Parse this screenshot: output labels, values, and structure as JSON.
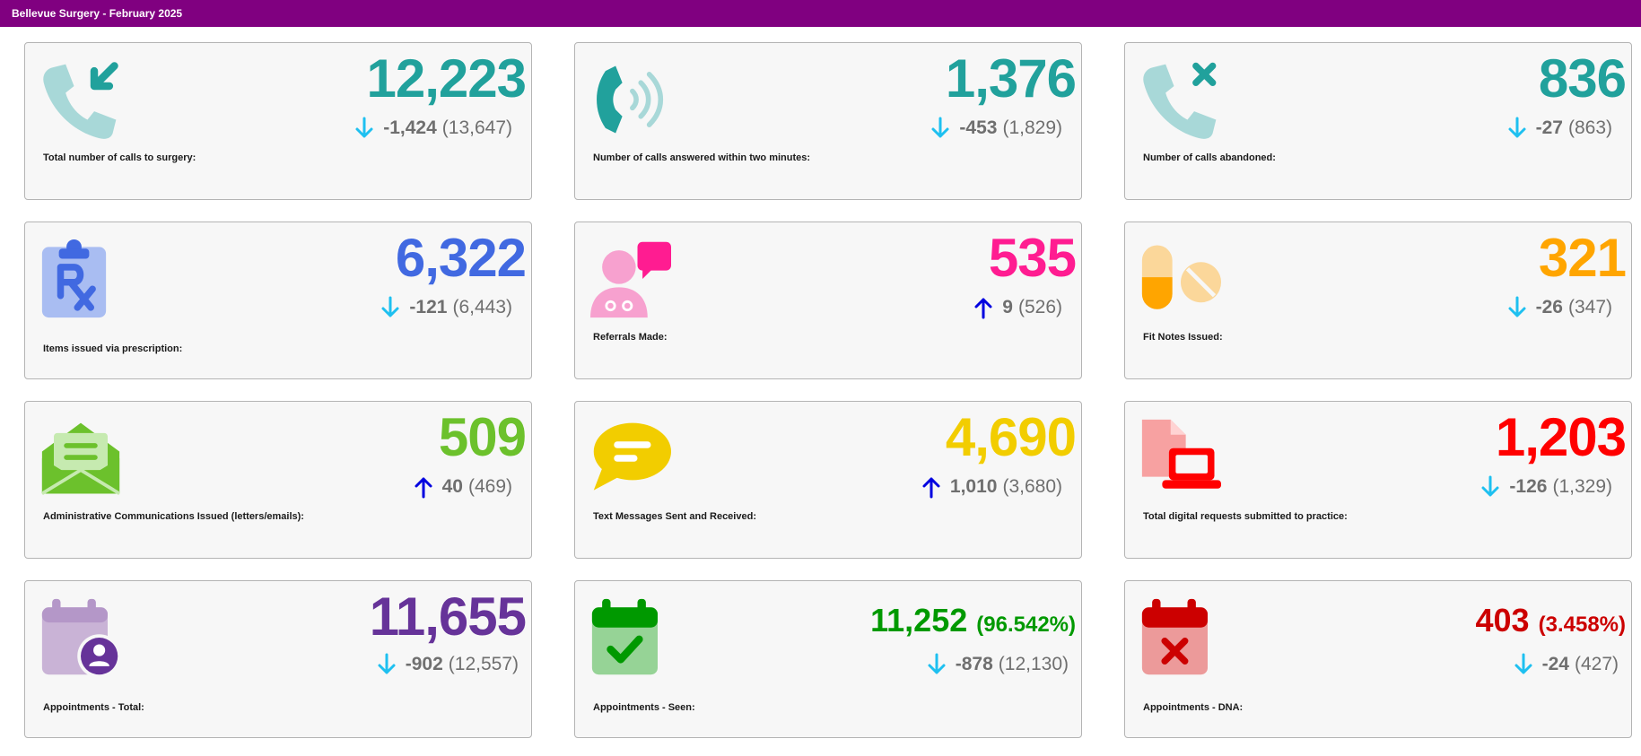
{
  "header": {
    "title": "Bellevue Surgery - February 2025"
  },
  "colors": {
    "title_bar": "#800080",
    "teal": "#21a19c",
    "blue": "#4169e1",
    "pink": "#ff1c91",
    "orange": "#ffa500",
    "green": "#6cc12c",
    "yellow": "#f2cd00",
    "red": "#ff0000",
    "purple": "#663399",
    "dark_green": "#009900",
    "dark_red": "#cc0000",
    "arrow_down": "#1ec0f0",
    "arrow_up": "#0000e0"
  },
  "cards": [
    {
      "label": "Total number of calls to surgery:",
      "value": "12,223",
      "delta": "-1,424",
      "previous": "(13,647)",
      "direction": "down",
      "icon": "incoming-call-icon"
    },
    {
      "label": "Number of calls answered within two minutes:",
      "value": "1,376",
      "delta": "-453",
      "previous": "(1,829)",
      "direction": "down",
      "icon": "ringing-phone-icon"
    },
    {
      "label": "Number of calls abandoned:",
      "value": "836",
      "delta": "-27",
      "previous": "(863)",
      "direction": "down",
      "icon": "missed-call-icon"
    },
    {
      "label": "Items issued via prescription:",
      "value": "6,322",
      "delta": "-121",
      "previous": "(6,443)",
      "direction": "down",
      "icon": "prescription-clipboard-icon"
    },
    {
      "label": "Referrals Made:",
      "value": "535",
      "delta": "9",
      "previous": "(526)",
      "direction": "up",
      "icon": "doctor-chat-icon"
    },
    {
      "label": "Fit Notes Issued:",
      "value": "321",
      "delta": "-26",
      "previous": "(347)",
      "direction": "down",
      "icon": "pills-icon"
    },
    {
      "label": "Administrative Communications Issued (letters/emails):",
      "value": "509",
      "delta": "40",
      "previous": "(469)",
      "direction": "up",
      "icon": "open-envelope-icon"
    },
    {
      "label": "Text Messages Sent and Received:",
      "value": "4,690",
      "delta": "1,010",
      "previous": "(3,680)",
      "direction": "up",
      "icon": "message-bubble-icon"
    },
    {
      "label": "Total digital requests submitted to practice:",
      "value": "1,203",
      "delta": "-126",
      "previous": "(1,329)",
      "direction": "down",
      "icon": "file-laptop-icon"
    },
    {
      "label": "Appointments - Total:",
      "value": "11,655",
      "delta": "-902",
      "previous": "(12,557)",
      "direction": "down",
      "icon": "calendar-user-icon"
    },
    {
      "label": "Appointments - Seen:",
      "value": "11,252",
      "percent": "(96.542%)",
      "delta": "-878",
      "previous": "(12,130)",
      "direction": "down",
      "icon": "calendar-check-icon"
    },
    {
      "label": "Appointments - DNA:",
      "value": "403",
      "percent": "(3.458%)",
      "delta": "-24",
      "previous": "(427)",
      "direction": "down",
      "icon": "calendar-x-icon"
    }
  ]
}
